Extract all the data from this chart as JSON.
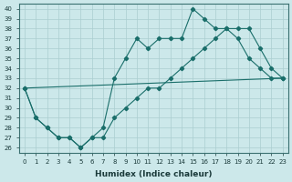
{
  "xlabel": "Humidex (Indice chaleur)",
  "bg_color": "#cce8ea",
  "line_color": "#1a6e6a",
  "grid_color": "#aacdd0",
  "xlim": [
    -0.5,
    23.5
  ],
  "ylim": [
    25.5,
    40.5
  ],
  "yticks": [
    26,
    27,
    28,
    29,
    30,
    31,
    32,
    33,
    34,
    35,
    36,
    37,
    38,
    39,
    40
  ],
  "xticks": [
    0,
    1,
    2,
    3,
    4,
    5,
    6,
    7,
    8,
    9,
    10,
    11,
    12,
    13,
    14,
    15,
    16,
    17,
    18,
    19,
    20,
    21,
    22,
    23
  ],
  "series1_x": [
    0,
    1,
    2,
    3,
    4,
    5,
    6,
    7,
    8,
    9,
    10,
    11,
    12,
    13,
    14,
    15,
    16,
    17,
    18,
    19,
    20,
    21,
    22,
    23
  ],
  "series1_y": [
    32,
    29,
    28,
    27,
    27,
    26,
    27,
    28,
    33,
    35,
    37,
    36,
    37,
    37,
    37,
    40,
    39,
    38,
    38,
    37,
    35,
    34,
    33,
    33
  ],
  "series2_x": [
    0,
    1,
    2,
    3,
    4,
    5,
    6,
    7,
    8,
    9,
    10,
    11,
    12,
    13,
    14,
    15,
    16,
    17,
    18,
    19,
    20,
    21,
    22,
    23
  ],
  "series2_y": [
    32,
    29,
    28,
    27,
    27,
    26,
    27,
    27,
    29,
    30,
    31,
    32,
    32,
    33,
    34,
    35,
    36,
    37,
    38,
    38,
    38,
    36,
    34,
    33
  ],
  "series3_x": [
    0,
    23
  ],
  "series3_y": [
    32,
    33
  ]
}
